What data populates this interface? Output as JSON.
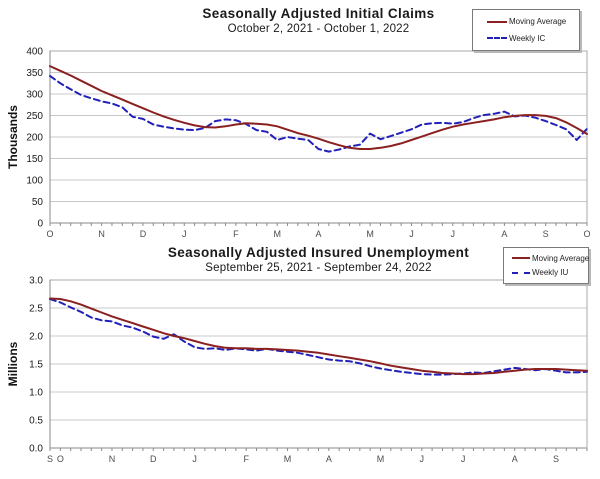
{
  "colors": {
    "moving_average": "#8b2020",
    "weekly": "#2121b8",
    "grid": "#c8c8c8",
    "plot_border": "#a8a8a8",
    "axis": "#8a8a8a",
    "tick": "#8a8a8a",
    "tick_label": "#1a1a1a",
    "month_label": "#4d4d4d",
    "background": "#ffffff"
  },
  "chart_data": [
    {
      "type": "line",
      "title": "Seasonally Adjusted Initial Claims",
      "subtitle": "October 2, 2021 - October 1, 2022",
      "xlabel": "",
      "ylabel": "Thousands",
      "ylim": [
        0,
        400
      ],
      "ytick_step": 50,
      "ytick_decimals": 0,
      "grid": true,
      "legend_position": "top-right",
      "weeks": 53,
      "x_month_labels": [
        {
          "label": "O",
          "week": 0
        },
        {
          "label": "N",
          "week": 5
        },
        {
          "label": "D",
          "week": 9
        },
        {
          "label": "J",
          "week": 13
        },
        {
          "label": "F",
          "week": 18
        },
        {
          "label": "M",
          "week": 22
        },
        {
          "label": "A",
          "week": 26
        },
        {
          "label": "M",
          "week": 31
        },
        {
          "label": "J",
          "week": 35
        },
        {
          "label": "J",
          "week": 39
        },
        {
          "label": "A",
          "week": 44
        },
        {
          "label": "S",
          "week": 48
        },
        {
          "label": "O",
          "week": 52
        }
      ],
      "series": [
        {
          "name": "Moving Average",
          "style": "solid",
          "color": "#8b2020",
          "values": [
            365,
            354,
            343,
            331,
            319,
            307,
            297,
            287,
            277,
            267,
            257,
            248,
            240,
            233,
            227,
            223,
            222,
            225,
            229,
            232,
            231,
            229,
            225,
            217,
            209,
            203,
            196,
            188,
            181,
            175,
            172,
            172,
            175,
            179,
            185,
            193,
            201,
            209,
            217,
            224,
            229,
            233,
            237,
            241,
            246,
            249,
            251,
            251,
            249,
            244,
            234,
            221,
            207
          ]
        },
        {
          "name": "Weekly IC",
          "style": "dashed",
          "color": "#2121b8",
          "values": [
            342,
            325,
            311,
            298,
            290,
            283,
            278,
            269,
            247,
            242,
            229,
            224,
            220,
            217,
            216,
            221,
            237,
            241,
            239,
            230,
            216,
            212,
            193,
            200,
            196,
            193,
            172,
            166,
            171,
            178,
            182,
            208,
            195,
            202,
            210,
            218,
            229,
            232,
            233,
            231,
            235,
            244,
            251,
            254,
            259,
            248,
            250,
            245,
            237,
            228,
            218,
            193,
            219
          ]
        }
      ]
    },
    {
      "type": "line",
      "title": "Seasonally Adjusted Insured Unemployment",
      "subtitle": "September 25, 2021 - September 24, 2022",
      "xlabel": "",
      "ylabel": "Millions",
      "ylim": [
        0,
        3
      ],
      "ytick_step": 0.5,
      "ytick_decimals": 1,
      "grid": true,
      "legend_position": "top-right",
      "weeks": 53,
      "x_month_labels": [
        {
          "label": "S",
          "week": 0
        },
        {
          "label": "O",
          "week": 1
        },
        {
          "label": "N",
          "week": 6
        },
        {
          "label": "D",
          "week": 10
        },
        {
          "label": "J",
          "week": 14
        },
        {
          "label": "F",
          "week": 19
        },
        {
          "label": "M",
          "week": 23
        },
        {
          "label": "A",
          "week": 27
        },
        {
          "label": "M",
          "week": 32
        },
        {
          "label": "J",
          "week": 36
        },
        {
          "label": "J",
          "week": 40
        },
        {
          "label": "A",
          "week": 45
        },
        {
          "label": "S",
          "week": 49
        }
      ],
      "series": [
        {
          "name": "Moving Average",
          "style": "solid",
          "color": "#8b2020",
          "values": [
            2.67,
            2.66,
            2.62,
            2.56,
            2.49,
            2.42,
            2.35,
            2.29,
            2.23,
            2.17,
            2.11,
            2.05,
            2.0,
            1.96,
            1.91,
            1.86,
            1.82,
            1.79,
            1.78,
            1.78,
            1.77,
            1.77,
            1.76,
            1.75,
            1.74,
            1.72,
            1.7,
            1.67,
            1.64,
            1.61,
            1.58,
            1.55,
            1.51,
            1.47,
            1.44,
            1.41,
            1.38,
            1.36,
            1.34,
            1.33,
            1.32,
            1.32,
            1.33,
            1.34,
            1.36,
            1.38,
            1.4,
            1.41,
            1.41,
            1.41,
            1.4,
            1.39,
            1.38
          ]
        },
        {
          "name": "Weekly IU",
          "style": "dashed",
          "color": "#2121b8",
          "values": [
            2.66,
            2.6,
            2.51,
            2.43,
            2.33,
            2.28,
            2.26,
            2.19,
            2.15,
            2.08,
            1.99,
            1.95,
            2.03,
            1.9,
            1.8,
            1.77,
            1.78,
            1.75,
            1.78,
            1.76,
            1.74,
            1.77,
            1.74,
            1.72,
            1.7,
            1.66,
            1.62,
            1.58,
            1.56,
            1.55,
            1.51,
            1.46,
            1.42,
            1.39,
            1.36,
            1.34,
            1.32,
            1.31,
            1.31,
            1.32,
            1.33,
            1.35,
            1.34,
            1.37,
            1.4,
            1.43,
            1.41,
            1.39,
            1.41,
            1.38,
            1.35,
            1.35,
            1.36
          ]
        }
      ]
    }
  ]
}
